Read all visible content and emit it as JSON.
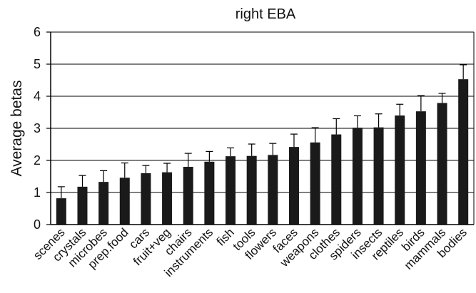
{
  "chart_data": {
    "type": "bar",
    "title": "right EBA",
    "xlabel": "",
    "ylabel": "Average betas",
    "ylim": [
      0,
      6
    ],
    "yticks": [
      0,
      1,
      2,
      3,
      4,
      5,
      6
    ],
    "grid": "horizontal",
    "categories": [
      "scenes",
      "crystals",
      "microbes",
      "prep.food",
      "cars",
      "fruit+veg",
      "chairs",
      "instruments",
      "fish",
      "tools",
      "flowers",
      "faces",
      "weapons",
      "clothes",
      "spiders",
      "insects",
      "reptiles",
      "birds",
      "mammals",
      "bodies"
    ],
    "values": [
      0.82,
      1.18,
      1.33,
      1.46,
      1.6,
      1.63,
      1.8,
      1.96,
      2.13,
      2.14,
      2.17,
      2.42,
      2.56,
      2.81,
      3.02,
      3.03,
      3.4,
      3.53,
      3.79,
      4.53
    ],
    "error_upper": [
      1.18,
      1.53,
      1.68,
      1.92,
      1.84,
      1.91,
      2.22,
      2.28,
      2.39,
      2.51,
      2.53,
      2.82,
      3.02,
      3.3,
      3.39,
      3.45,
      3.75,
      4.02,
      4.09,
      4.98
    ],
    "colors": {
      "bar": "#1a1a1a",
      "axis": "#000000",
      "grid": "#000000"
    }
  }
}
